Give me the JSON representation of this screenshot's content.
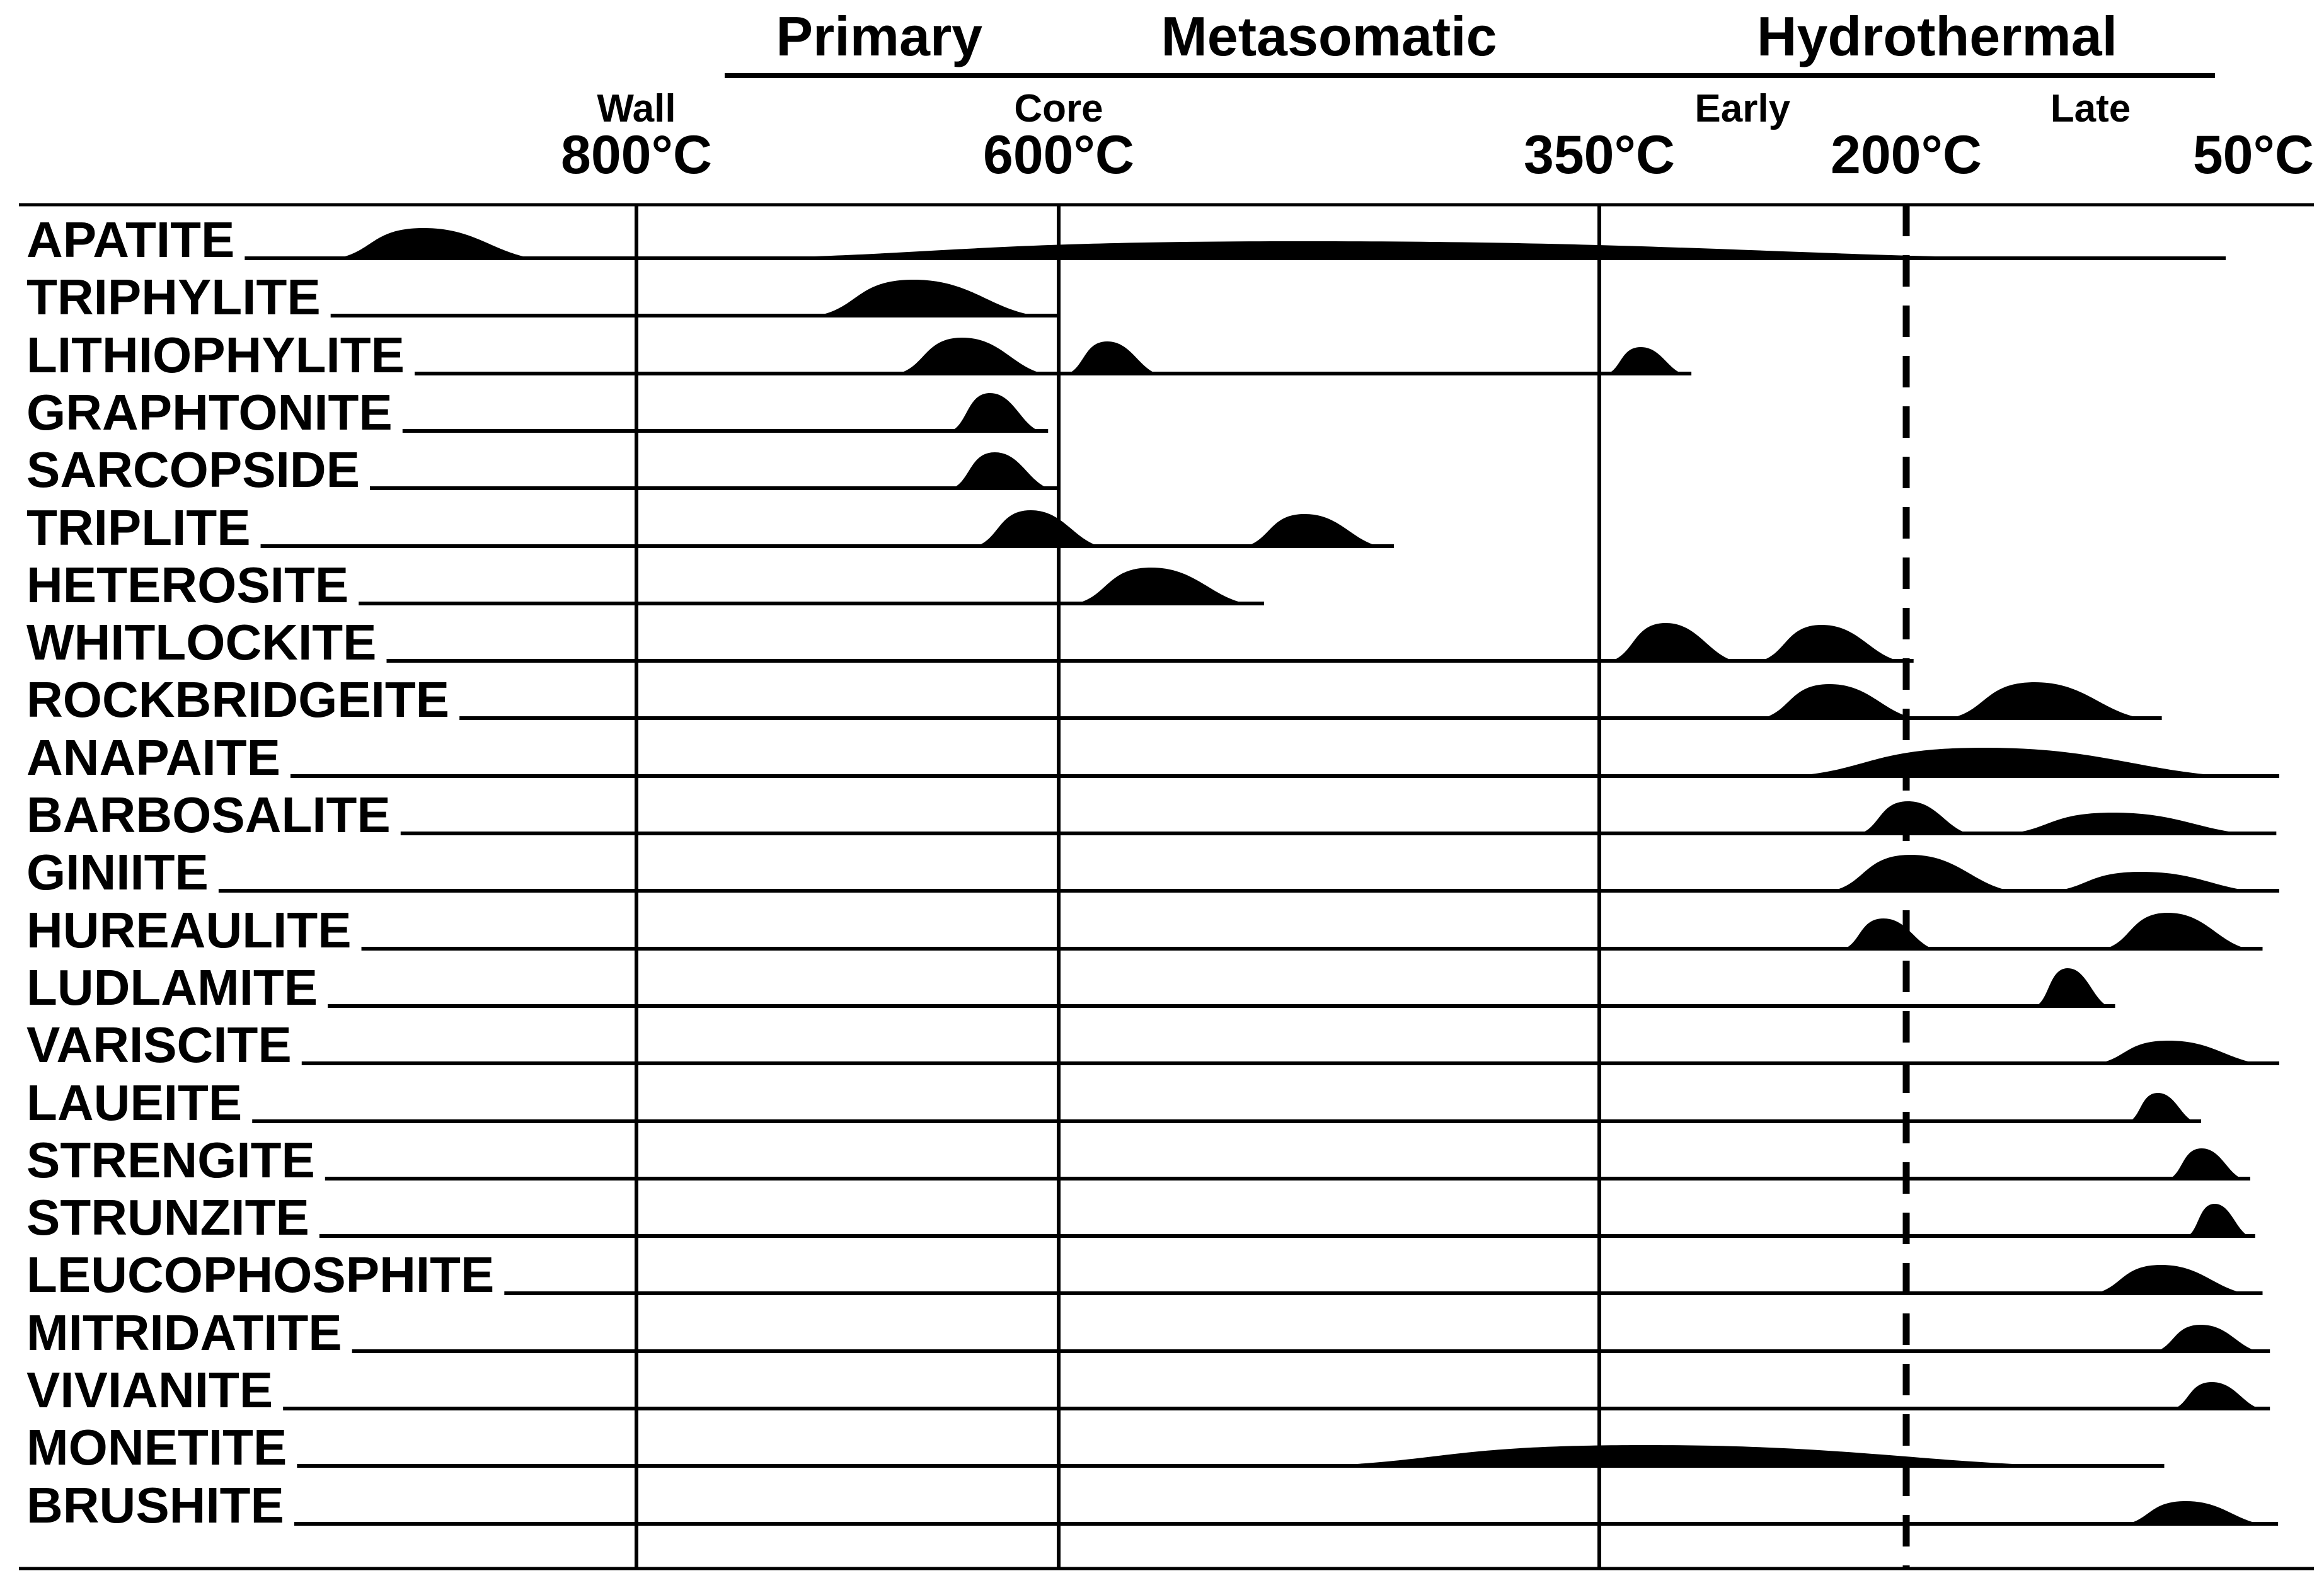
{
  "chart_data": {
    "type": "area",
    "stages": [
      {
        "name": "Primary",
        "from": 770,
        "to": 600
      },
      {
        "name": "Metasomatic",
        "from": 600,
        "to": 350
      },
      {
        "name": "Hydrothermal",
        "from": 350,
        "to": 50
      }
    ],
    "zones": [
      {
        "label": "Wall",
        "temp": 800
      },
      {
        "label": "Core",
        "temp": 600
      },
      {
        "label": "Early",
        "temp": 280
      },
      {
        "label": "Late",
        "temp": 125
      }
    ],
    "temperature_ticks": [
      {
        "label": "800°C",
        "value": 800
      },
      {
        "label": "600°C",
        "value": 600
      },
      {
        "label": "350°C",
        "value": 350
      },
      {
        "label": "200°C",
        "value": 200
      },
      {
        "label": "50°C",
        "value": 50
      }
    ],
    "reference_lines": [
      {
        "value": 800,
        "style": "solid"
      },
      {
        "value": 600,
        "style": "solid"
      },
      {
        "value": 350,
        "style": "solid"
      },
      {
        "value": 200,
        "style": "dashed"
      }
    ],
    "xlim": [
      800,
      50
    ],
    "minerals": [
      {
        "name": "APATITE",
        "humps": [
          [
            1000,
            850,
            0.8
          ],
          [
            850,
            70,
            0.45
          ]
        ]
      },
      {
        "name": "TRIPHYLITE",
        "humps": [
          [
            725,
            600,
            0.95
          ]
        ]
      },
      {
        "name": "LITHIOPHYLITE",
        "humps": [
          [
            683,
            600,
            0.95
          ],
          [
            600,
            550,
            0.85
          ],
          [
            350,
            305,
            0.7
          ]
        ]
      },
      {
        "name": "GRAPHTONITE",
        "humps": [
          [
            655,
            605,
            1.0
          ]
        ]
      },
      {
        "name": "SARCOPSIDE",
        "humps": [
          [
            655,
            600,
            0.95
          ]
        ]
      },
      {
        "name": "TRIPLITE",
        "humps": [
          [
            645,
            575,
            0.95
          ],
          [
            520,
            445,
            0.85
          ]
        ]
      },
      {
        "name": "HETEROSITE",
        "humps": [
          [
            600,
            505,
            0.95
          ]
        ]
      },
      {
        "name": "WHITLOCKITE",
        "humps": [
          [
            350,
            278,
            1.0
          ],
          [
            278,
            197,
            0.95
          ]
        ]
      },
      {
        "name": "ROCKBRIDGEITE",
        "humps": [
          [
            278,
            190,
            0.9
          ],
          [
            190,
            96,
            0.95
          ]
        ]
      },
      {
        "name": "ANAPAITE",
        "humps": [
          [
            280,
            20,
            0.75
          ]
        ]
      },
      {
        "name": "BARBOSALITE",
        "humps": [
          [
            228,
            170,
            0.85
          ],
          [
            170,
            40,
            0.55
          ]
        ]
      },
      {
        "name": "GINIITE",
        "humps": [
          [
            245,
            150,
            0.95
          ],
          [
            150,
            20,
            0.5
          ]
        ]
      },
      {
        "name": "HUREAULITE",
        "humps": [
          [
            235,
            185,
            0.8
          ],
          [
            125,
            55,
            0.95
          ]
        ]
      },
      {
        "name": "LUDLAMITE",
        "humps": [
          [
            150,
            115,
            1.0
          ]
        ]
      },
      {
        "name": "VARISCITE",
        "humps": [
          [
            130,
            20,
            0.6
          ]
        ]
      },
      {
        "name": "LAUEITE",
        "humps": [
          [
            112,
            80,
            0.75
          ]
        ]
      },
      {
        "name": "STRENGITE",
        "humps": [
          [
            96,
            60,
            0.8
          ]
        ]
      },
      {
        "name": "STRUNZITE",
        "humps": [
          [
            88,
            58,
            0.85
          ]
        ]
      },
      {
        "name": "LEUCOPHOSPHITE",
        "humps": [
          [
            130,
            55,
            0.75
          ]
        ]
      },
      {
        "name": "MITRIDATITE",
        "humps": [
          [
            103,
            52,
            0.7
          ]
        ]
      },
      {
        "name": "VIVIANITE",
        "humps": [
          [
            95,
            52,
            0.7
          ]
        ]
      },
      {
        "name": "MONETITE",
        "humps": [
          [
            525,
            95,
            0.55
          ]
        ]
      },
      {
        "name": "BRUSHITE",
        "humps": [
          [
            117,
            28,
            0.6
          ]
        ]
      }
    ]
  }
}
